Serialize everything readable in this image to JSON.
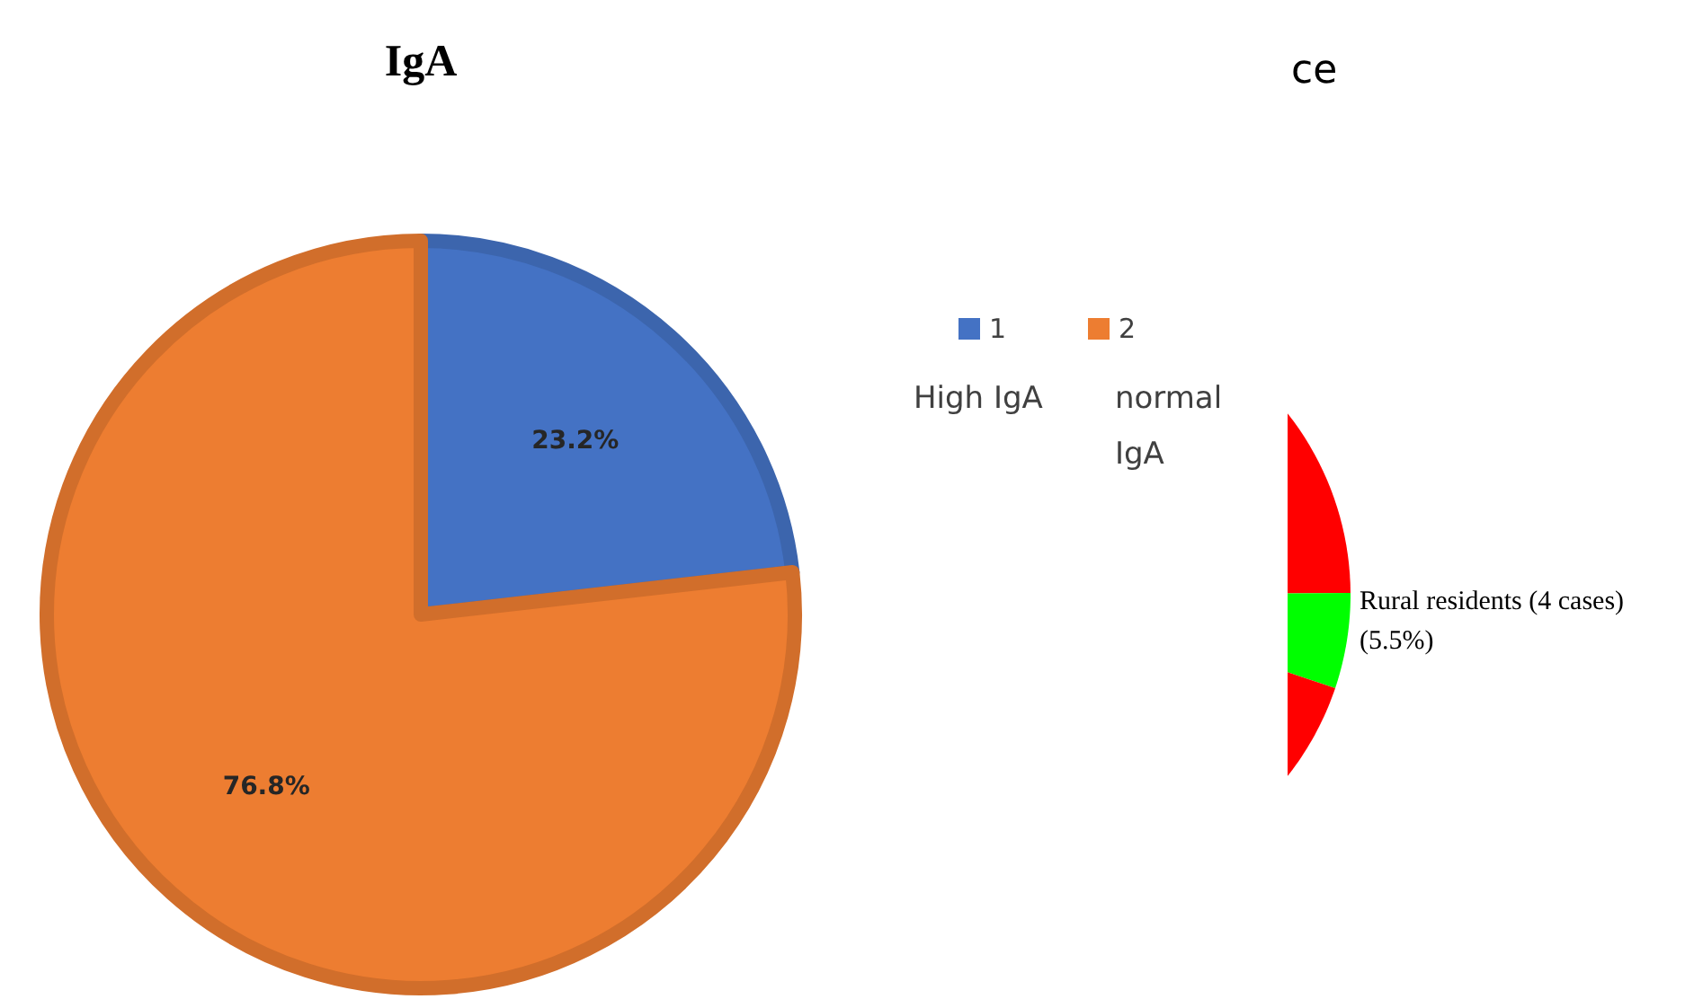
{
  "chart_data": [
    {
      "type": "pie",
      "title": "IgA",
      "categories": [
        "1",
        "2"
      ],
      "values": [
        23.2,
        76.8
      ],
      "colors": [
        "#4472c4",
        "#ed7d31"
      ],
      "value_labels": [
        "23.2%",
        "76.8%"
      ],
      "legend": "right",
      "annotations": [
        "High IgA",
        "normal IgA"
      ]
    },
    {
      "type": "other",
      "title": "ce",
      "annotations": [
        "Rural residents (4 cases)",
        "(5.5%)"
      ]
    }
  ]
}
